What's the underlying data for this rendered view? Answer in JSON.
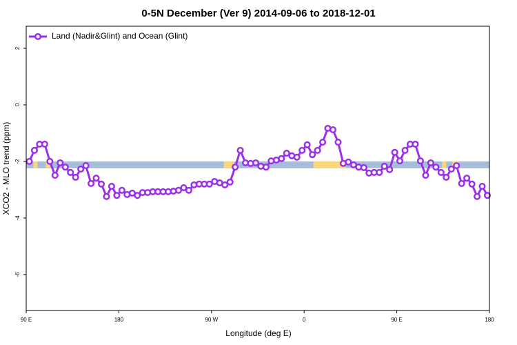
{
  "chart_data": {
    "type": "line",
    "title": "0-5N December (Ver 9)   2014-09-06 to 2018-12-01",
    "x_label": "Longitude (deg E)",
    "y_label": "XCO2 - MLO trend (ppm)",
    "xlim": [
      90,
      540
    ],
    "ylim": [
      -7.27,
      2.78
    ],
    "xticks": [
      {
        "value": 90,
        "label": "90 E"
      },
      {
        "value": 180,
        "label": "180"
      },
      {
        "value": 270,
        "label": "90 W"
      },
      {
        "value": 360,
        "label": "0"
      },
      {
        "value": 450,
        "label": "90 E"
      },
      {
        "value": 540,
        "label": "180"
      }
    ],
    "yticks": [
      2,
      0,
      -2,
      -4,
      -6
    ],
    "legend": "top-left",
    "surface_band": {
      "range": [
        -2.24,
        -2.0
      ],
      "color": "#a7bcd9",
      "land_color": "#fad77b",
      "land": [
        [
          97,
          101
        ],
        [
          109,
          113
        ],
        [
          282,
          292
        ],
        [
          369,
          400
        ],
        [
          494,
          498
        ],
        [
          504,
          510
        ]
      ]
    },
    "x": [
      93,
      98,
      103,
      108,
      113,
      118,
      123,
      128,
      133,
      138,
      143,
      148,
      153,
      158,
      163,
      168,
      173,
      178,
      183,
      188,
      193,
      198,
      203,
      208,
      213,
      218,
      223,
      228,
      233,
      238,
      243,
      248,
      253,
      258,
      263,
      268,
      273,
      278,
      283,
      288,
      293,
      298,
      303,
      308,
      313,
      318,
      323,
      328,
      333,
      338,
      343,
      348,
      353,
      358,
      363,
      368,
      373,
      378,
      383,
      388,
      393,
      398,
      403,
      408,
      413,
      418,
      423,
      428,
      433,
      438,
      443,
      448,
      453,
      458,
      463,
      468,
      473,
      478,
      483,
      488,
      493,
      498,
      503,
      508,
      513,
      518,
      523,
      528,
      533,
      538
    ],
    "series": [
      {
        "name": "Land (Nadir&Glint) and Ocean (Glint)",
        "color": "#9b30e8",
        "values": [
          -2.0,
          -1.61,
          -1.39,
          -1.39,
          -2.0,
          -2.49,
          -2.05,
          -2.2,
          -2.39,
          -2.56,
          -2.27,
          -2.15,
          -2.78,
          -2.59,
          -2.8,
          -3.24,
          -2.88,
          -3.2,
          -3.02,
          -3.17,
          -3.12,
          -3.2,
          -3.1,
          -3.1,
          -3.07,
          -3.07,
          -3.07,
          -3.07,
          -3.05,
          -3.02,
          -2.93,
          -3.02,
          -2.83,
          -2.8,
          -2.8,
          -2.8,
          -2.71,
          -2.76,
          -2.83,
          -2.73,
          -2.2,
          -1.61,
          -2.05,
          -2.07,
          -2.05,
          -2.17,
          -2.2,
          -1.98,
          -1.95,
          -1.9,
          -1.71,
          -1.8,
          -1.85,
          -1.61,
          -1.41,
          -1.76,
          -1.61,
          -1.32,
          -0.83,
          -0.88,
          -1.32,
          -2.07,
          -2.02,
          -2.12,
          -2.2,
          -2.22,
          -2.41,
          -2.39,
          -2.39,
          -2.17,
          -2.29,
          -1.68,
          -1.98,
          -1.61,
          -1.39,
          -1.39,
          -1.98,
          -2.49,
          -2.05,
          -2.2,
          -2.39,
          -2.56,
          -2.27,
          -2.15,
          -2.78,
          -2.59,
          -2.8,
          -3.24,
          -2.88,
          -3.2
        ]
      }
    ]
  }
}
